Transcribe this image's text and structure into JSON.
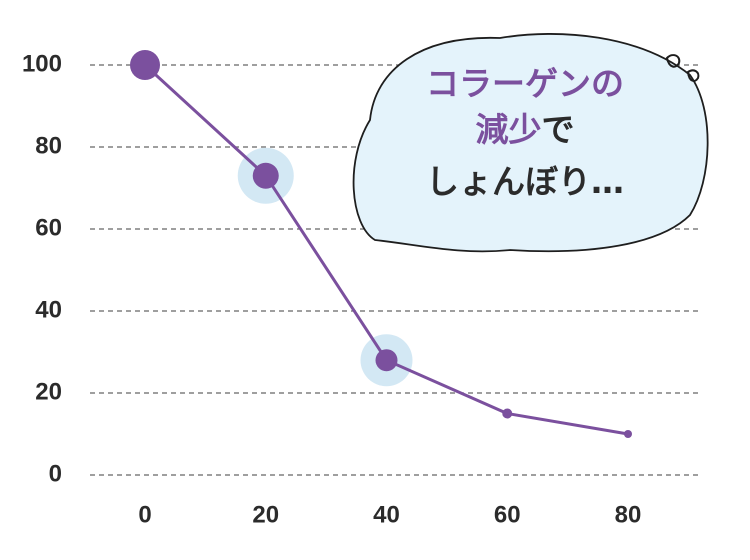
{
  "chart_data": {
    "type": "line",
    "x": [
      0,
      20,
      40,
      60,
      80
    ],
    "series": [
      {
        "color": "#7b509e",
        "values": [
          100,
          73,
          28,
          15,
          10
        ]
      }
    ],
    "xlim": [
      0,
      80
    ],
    "xticks": [
      0,
      20,
      40,
      60,
      80
    ],
    "ylim": [
      0,
      100
    ],
    "yticks": [
      0,
      20,
      40,
      60,
      80,
      100
    ],
    "grid": true,
    "annotation": [
      [
        {
          "text": "コラーゲンの",
          "color": "#7b509e"
        }
      ],
      [
        {
          "text": "減少",
          "color": "#7b509e"
        },
        {
          "text": "で",
          "color": "#2b2b2b"
        }
      ],
      [
        {
          "text": "しょんぼり…",
          "color": "#2b2b2b"
        }
      ]
    ]
  }
}
